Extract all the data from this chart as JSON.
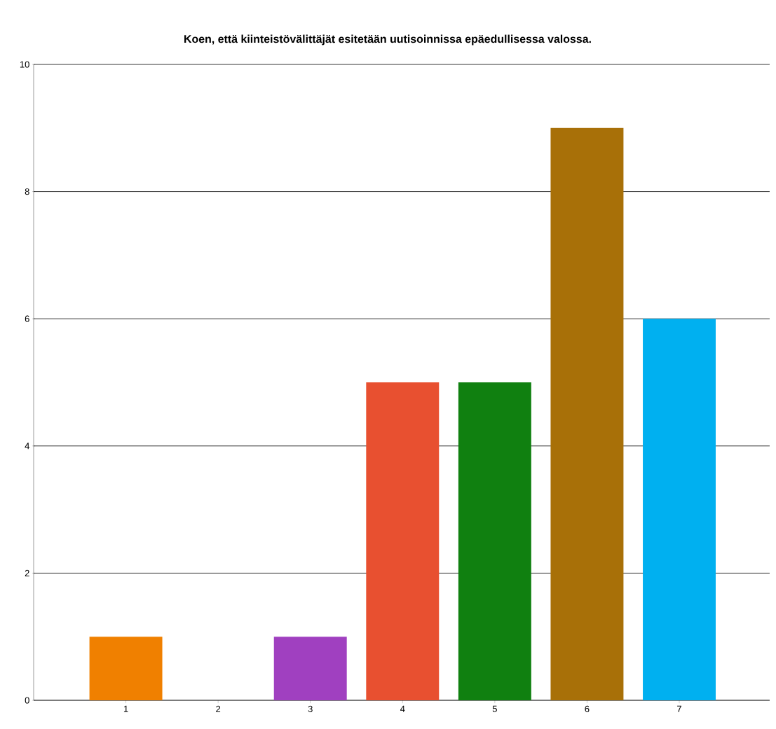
{
  "chart_data": {
    "type": "bar",
    "title": "Koen, että kiinteistövälittäjät esitetään uutisoinnissa epäedullisessa valossa.",
    "categories": [
      "1",
      "2",
      "3",
      "4",
      "5",
      "6",
      "7"
    ],
    "values": [
      1,
      0,
      1,
      5,
      5,
      9,
      6
    ],
    "colors": [
      "#f08000",
      "#808080",
      "#a040c0",
      "#e85030",
      "#108010",
      "#a87008",
      "#00b0f0"
    ],
    "ylim": [
      0,
      10
    ],
    "yticks": [
      0,
      2,
      4,
      6,
      8,
      10
    ],
    "grid": "y"
  }
}
